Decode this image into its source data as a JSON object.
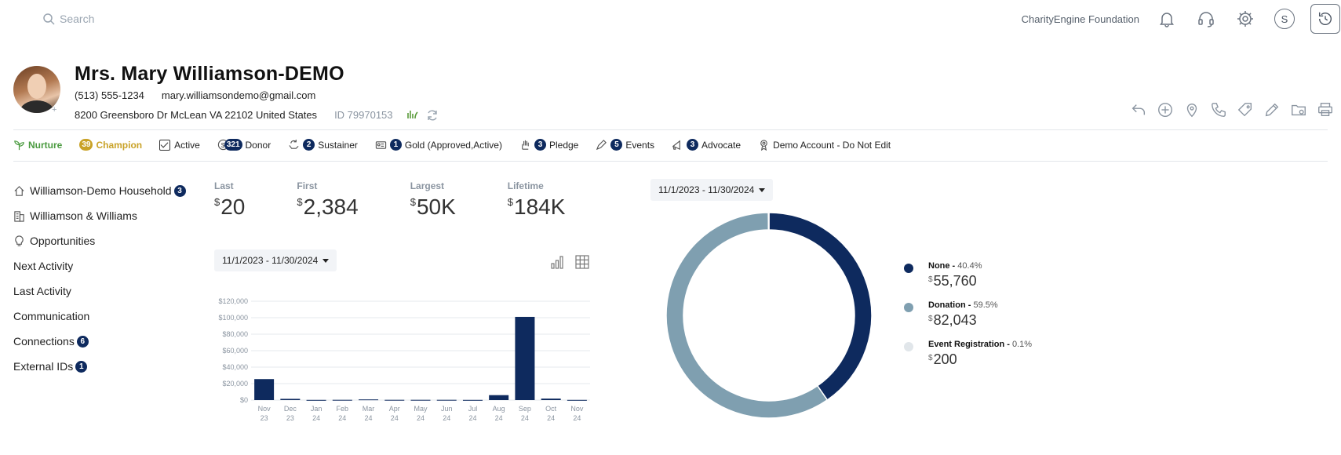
{
  "search": {
    "placeholder": "Search"
  },
  "topbar": {
    "org_name": "CharityEngine Foundation",
    "user_initial": "S"
  },
  "profile": {
    "name": "Mrs. Mary Williamson-DEMO",
    "phone": "(513) 555-1234",
    "email": "mary.williamsondemo@gmail.com",
    "address": "8200 Greensboro Dr McLean VA 22102 United States",
    "id": "ID 79970153"
  },
  "tags": {
    "nurture": "Nurture",
    "champion_count": "39",
    "champion": "Champion",
    "active": "Active",
    "donor_count": "321",
    "donor": "Donor",
    "sustainer_count": "2",
    "sustainer": "Sustainer",
    "gold_count": "1",
    "gold": "Gold (Approved,Active)",
    "pledge_count": "3",
    "pledge": "Pledge",
    "events_count": "5",
    "events": "Events",
    "advocate_count": "3",
    "advocate": "Advocate",
    "demo": "Demo Account - Do Not Edit"
  },
  "leftnav": {
    "household": "Williamson-Demo Household",
    "household_count": "3",
    "company": "Williamson & Williams",
    "opportunities": "Opportunities",
    "next_activity": "Next Activity",
    "last_activity": "Last Activity",
    "communication": "Communication",
    "connections": "Connections",
    "connections_count": "6",
    "external_ids": "External IDs",
    "external_ids_count": "1"
  },
  "stats": {
    "currency": "$",
    "last_label": "Last",
    "last_value": "20",
    "first_label": "First",
    "first_value": "2,384",
    "largest_label": "Largest",
    "largest_value": "50K",
    "lifetime_label": "Lifetime",
    "lifetime_value": "184K"
  },
  "daterange": {
    "bar": "11/1/2023 - 11/30/2024",
    "donut": "11/1/2023 - 11/30/2024"
  },
  "chart_data": [
    {
      "type": "bar",
      "categories": [
        "Nov 23",
        "Dec 23",
        "Jan 24",
        "Feb 24",
        "Mar 24",
        "Apr 24",
        "May 24",
        "Jun 24",
        "Jul 24",
        "Aug 24",
        "Sep 24",
        "Oct 24",
        "Nov 24"
      ],
      "values": [
        25500,
        1500,
        200,
        300,
        800,
        300,
        300,
        300,
        200,
        6000,
        101000,
        1800,
        200
      ],
      "yticks": [
        "$0",
        "$20,000",
        "$40,000",
        "$60,000",
        "$80,000",
        "$100,000",
        "$120,000"
      ],
      "ylim": [
        0,
        120000
      ],
      "color": "#0e2a5e",
      "grid": true
    },
    {
      "type": "pie",
      "donut": true,
      "slices": [
        {
          "name": "None",
          "pct": "40.4%",
          "value": 40.4,
          "amount": "55,760",
          "color": "#0e2a5e"
        },
        {
          "name": "Donation",
          "pct": "59.5%",
          "value": 59.5,
          "amount": "82,043",
          "color": "#7f9fb0"
        },
        {
          "name": "Event Registration",
          "pct": "0.1%",
          "value": 0.1,
          "amount": "200",
          "color": "#e1e6ea"
        }
      ],
      "legend": "right"
    }
  ]
}
